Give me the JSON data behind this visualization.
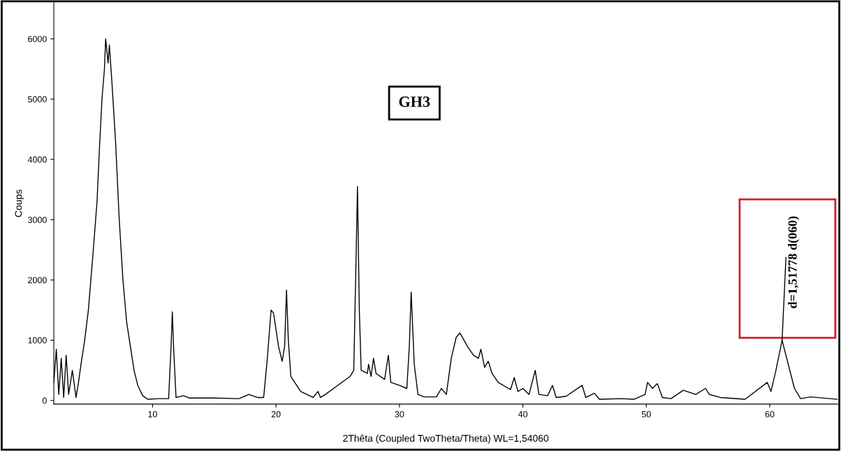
{
  "chart_data": {
    "type": "line",
    "title": "GH3",
    "xlabel": "2Thêta (Coupled TwoTheta/Theta) WL=1,54060",
    "ylabel": "Coups",
    "x": [
      2.0,
      2.2,
      2.4,
      2.6,
      2.8,
      3.0,
      3.2,
      3.5,
      3.8,
      4.0,
      4.2,
      4.5,
      4.8,
      5.0,
      5.2,
      5.5,
      5.7,
      5.9,
      6.1,
      6.2,
      6.4,
      6.5,
      6.7,
      7.0,
      7.3,
      7.6,
      7.9,
      8.2,
      8.5,
      8.8,
      9.2,
      9.6,
      10.5,
      11.3,
      11.5,
      11.6,
      11.7,
      11.9,
      12.5,
      13,
      15,
      17,
      17.8,
      18.5,
      19.0,
      19.3,
      19.6,
      19.8,
      20.2,
      20.5,
      20.7,
      20.85,
      21.0,
      21.2,
      22,
      23,
      23.4,
      23.6,
      24,
      25,
      26,
      26.3,
      26.5,
      26.6,
      26.75,
      26.9,
      27.4,
      27.5,
      27.7,
      27.9,
      28.1,
      28.8,
      29.1,
      29.3,
      30,
      30.6,
      30.8,
      30.95,
      31.2,
      31.5,
      32,
      33,
      33.4,
      33.8,
      34.2,
      34.6,
      34.9,
      35.5,
      36,
      36.4,
      36.6,
      36.9,
      37.2,
      37.5,
      38,
      39,
      39.3,
      39.6,
      40,
      40.5,
      41.0,
      41.3,
      42,
      42.4,
      42.7,
      43.5,
      44.8,
      45.1,
      45.8,
      46.2,
      48,
      49,
      49.9,
      50.1,
      50.5,
      50.9,
      51.3,
      52,
      53,
      54,
      54.8,
      55.1,
      56,
      58,
      59.8,
      60.1,
      60.5,
      61.0,
      61.5,
      62,
      62.5,
      63.3,
      65.5
    ],
    "series": [
      {
        "color": "#000000",
        "values": [
          300,
          850,
          100,
          700,
          50,
          750,
          100,
          500,
          50,
          300,
          600,
          1000,
          1500,
          2000,
          2500,
          3300,
          4200,
          5000,
          5500,
          6000,
          5600,
          5900,
          5300,
          4300,
          3000,
          2000,
          1300,
          900,
          500,
          250,
          80,
          20,
          30,
          30,
          900,
          1470,
          900,
          50,
          80,
          40,
          40,
          30,
          100,
          50,
          50,
          700,
          1500,
          1450,
          900,
          650,
          900,
          1830,
          1000,
          400,
          150,
          50,
          150,
          50,
          100,
          250,
          400,
          500,
          2500,
          3550,
          1500,
          500,
          450,
          600,
          400,
          700,
          450,
          350,
          750,
          300,
          250,
          200,
          900,
          1800,
          600,
          100,
          60,
          60,
          200,
          100,
          700,
          1050,
          1120,
          900,
          750,
          700,
          850,
          550,
          650,
          450,
          300,
          180,
          380,
          150,
          200,
          100,
          500,
          100,
          80,
          250,
          50,
          70,
          250,
          50,
          120,
          20,
          30,
          20,
          100,
          300,
          200,
          280,
          50,
          30,
          170,
          100,
          200,
          100,
          50,
          20,
          300,
          150,
          500,
          1000,
          600,
          200,
          30,
          60,
          20
        ]
      }
    ],
    "xlim": [
      2,
      65.5
    ],
    "ylim": [
      -60,
      6600
    ],
    "xticks": [
      10,
      20,
      30,
      40,
      50,
      60
    ],
    "yticks": [
      0,
      1000,
      2000,
      3000,
      4000,
      5000,
      6000
    ],
    "grid": false,
    "legend": false,
    "annotations": [
      {
        "text": "d=1,51778 d(060)",
        "x": 61.0,
        "y": 1000
      }
    ]
  }
}
